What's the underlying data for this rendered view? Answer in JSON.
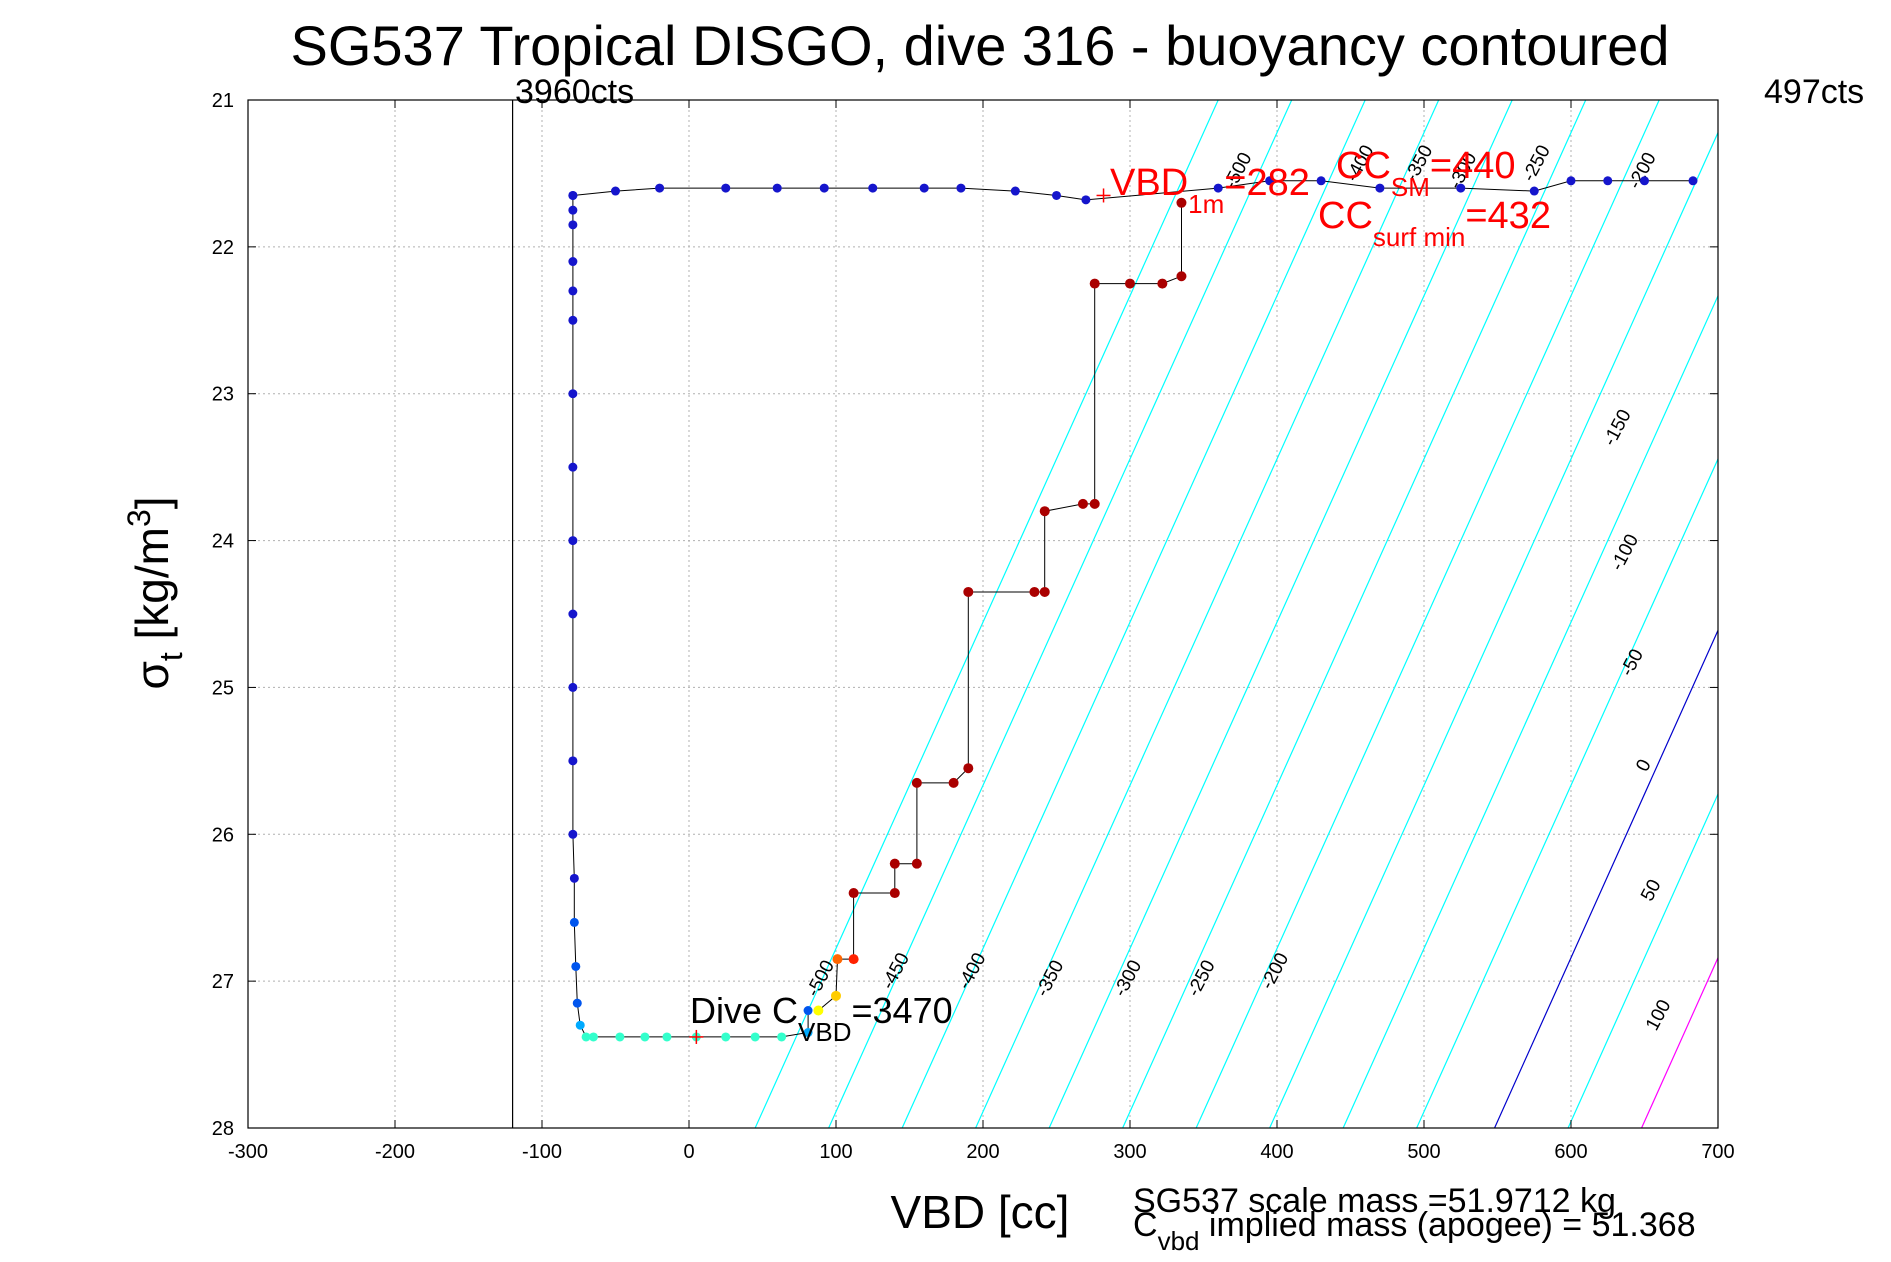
{
  "chart_data": {
    "type": "scatter",
    "title": "SG537 Tropical DISGO, dive 316 - buoyancy contoured",
    "xlabel": "VBD [cc]",
    "ylabel_main": "σ",
    "ylabel_sub": "t",
    "ylabel_units": " [kg/m",
    "ylabel_sup": "3",
    "ylabel_close": "]",
    "xlim": [
      -300,
      700
    ],
    "ylim": [
      28,
      21
    ],
    "y_reversed": true,
    "grid": true,
    "x_ticks": [
      "-300",
      "-200",
      "-100",
      "0",
      "100",
      "200",
      "300",
      "400",
      "500",
      "600",
      "700"
    ],
    "y_ticks": [
      "21",
      "22",
      "23",
      "24",
      "25",
      "26",
      "27",
      "28"
    ],
    "annotations": {
      "left_counts": "3960cts",
      "right_counts": "497cts",
      "vbd_1m_main": "VBD",
      "vbd_1m_sub": "1m",
      "vbd_1m_value": "=282",
      "cc_sm_main": "CC",
      "cc_sm_sub": "SM",
      "cc_sm_value": "=440",
      "cc_surf_main": "CC",
      "cc_surf_sub": "surf min",
      "cc_surf_value": "=432",
      "dive_c_main": "Dive C",
      "dive_c_sub": "VBD",
      "dive_c_value": "=3470",
      "scale_mass": "SG537 scale mass =51.9712 kg",
      "implied_main": "C",
      "implied_sub": "vbd",
      "implied_text": " implied mass (apogee) = 51.368"
    },
    "count_lines_x": [
      -120,
      700
    ],
    "contours": [
      {
        "label": "-500",
        "color": "#00ffff",
        "x_at_28": 45,
        "x_at_21": 360
      },
      {
        "label": "-450",
        "color": "#00ffff",
        "x_at_28": 95,
        "x_at_21": 410
      },
      {
        "label": "-400",
        "color": "#00ffff",
        "x_at_28": 145,
        "x_at_21": 460
      },
      {
        "label": "-350",
        "color": "#00ffff",
        "x_at_28": 195,
        "x_at_21": 510
      },
      {
        "label": "-300",
        "color": "#00ffff",
        "x_at_28": 245,
        "x_at_21": 560
      },
      {
        "label": "-250",
        "color": "#00ffff",
        "x_at_28": 295,
        "x_at_21": 610
      },
      {
        "label": "-200",
        "color": "#00ffff",
        "x_at_28": 345,
        "x_at_21": 660
      },
      {
        "label": "-150",
        "color": "#00ffff",
        "x_at_28": 395,
        "x_at_21": 710
      },
      {
        "label": "-100",
        "color": "#00ffff",
        "x_at_28": 445,
        "x_at_21": 760
      },
      {
        "label": "-50",
        "color": "#00ffff",
        "x_at_28": 495,
        "x_at_21": 810
      },
      {
        "label": "0",
        "color": "#0000cc",
        "x_at_28": 548,
        "x_at_21": 862
      },
      {
        "label": "50",
        "color": "#00ffff",
        "x_at_28": 598,
        "x_at_21": 912
      },
      {
        "label": "100",
        "color": "#ff00ff",
        "x_at_28": 648,
        "x_at_21": 962
      }
    ],
    "contour_label_points": [
      {
        "label": "-500",
        "x": 93,
        "y": 27.0
      },
      {
        "label": "-450",
        "x": 144,
        "y": 26.95
      },
      {
        "label": "-400",
        "x": 196,
        "y": 26.95
      },
      {
        "label": "-350",
        "x": 249,
        "y": 27.0
      },
      {
        "label": "-300",
        "x": 302,
        "y": 27.0
      },
      {
        "label": "-250",
        "x": 352,
        "y": 27.0
      },
      {
        "label": "-200",
        "x": 402,
        "y": 26.95
      },
      {
        "label": "-500",
        "x": 377,
        "y": 21.5
      },
      {
        "label": "-400",
        "x": 460,
        "y": 21.45
      },
      {
        "label": "-350",
        "x": 500,
        "y": 21.45
      },
      {
        "label": "-300",
        "x": 530,
        "y": 21.5
      },
      {
        "label": "-250",
        "x": 580,
        "y": 21.45
      },
      {
        "label": "-200",
        "x": 652,
        "y": 21.5
      },
      {
        "label": "-150",
        "x": 635,
        "y": 23.25
      },
      {
        "label": "-100",
        "x": 640,
        "y": 24.1
      },
      {
        "label": "-50",
        "x": 645,
        "y": 24.85
      },
      {
        "label": "0",
        "x": 653,
        "y": 25.55
      },
      {
        "label": "50",
        "x": 658,
        "y": 26.4
      },
      {
        "label": "100",
        "x": 663,
        "y": 27.25
      }
    ],
    "dive_series": [
      {
        "x": 81,
        "y": 27.2
      },
      {
        "x": 81,
        "y": 27.35
      },
      {
        "x": 63,
        "y": 27.38
      },
      {
        "x": 45,
        "y": 27.38
      },
      {
        "x": 25,
        "y": 27.38
      },
      {
        "x": 5,
        "y": 27.38
      },
      {
        "x": -15,
        "y": 27.38
      },
      {
        "x": -30,
        "y": 27.38
      },
      {
        "x": -47,
        "y": 27.38
      },
      {
        "x": -65,
        "y": 27.38
      },
      {
        "x": -70,
        "y": 27.38
      },
      {
        "x": -74,
        "y": 27.3
      },
      {
        "x": -76,
        "y": 27.15
      },
      {
        "x": -77,
        "y": 26.9
      },
      {
        "x": -78,
        "y": 26.6
      },
      {
        "x": -78,
        "y": 26.3
      },
      {
        "x": -79,
        "y": 26.0
      },
      {
        "x": -79,
        "y": 25.5
      },
      {
        "x": -79,
        "y": 25.0
      },
      {
        "x": -79,
        "y": 24.5
      },
      {
        "x": -79,
        "y": 24.0
      },
      {
        "x": -79,
        "y": 23.5
      },
      {
        "x": -79,
        "y": 23.0
      },
      {
        "x": -79,
        "y": 22.5
      },
      {
        "x": -79,
        "y": 22.3
      },
      {
        "x": -79,
        "y": 22.1
      },
      {
        "x": -79,
        "y": 21.85
      },
      {
        "x": -79,
        "y": 21.75
      },
      {
        "x": -79,
        "y": 21.65
      }
    ],
    "climb_series": [
      {
        "x": 88,
        "y": 27.2
      },
      {
        "x": 100,
        "y": 27.1
      },
      {
        "x": 101,
        "y": 26.85
      },
      {
        "x": 112,
        "y": 26.85
      },
      {
        "x": 112,
        "y": 26.4
      },
      {
        "x": 140,
        "y": 26.4
      },
      {
        "x": 140,
        "y": 26.2
      },
      {
        "x": 155,
        "y": 26.2
      },
      {
        "x": 155,
        "y": 25.65
      },
      {
        "x": 180,
        "y": 25.65
      },
      {
        "x": 190,
        "y": 25.55
      },
      {
        "x": 190,
        "y": 24.35
      },
      {
        "x": 235,
        "y": 24.35
      },
      {
        "x": 242,
        "y": 24.35
      },
      {
        "x": 242,
        "y": 23.8
      },
      {
        "x": 268,
        "y": 23.75
      },
      {
        "x": 276,
        "y": 23.75
      },
      {
        "x": 276,
        "y": 22.25
      },
      {
        "x": 300,
        "y": 22.25
      },
      {
        "x": 322,
        "y": 22.25
      },
      {
        "x": 335,
        "y": 22.2
      },
      {
        "x": 335,
        "y": 21.7
      }
    ],
    "surface_series": [
      {
        "x": -79,
        "y": 21.65
      },
      {
        "x": -50,
        "y": 21.62
      },
      {
        "x": -20,
        "y": 21.6
      },
      {
        "x": 25,
        "y": 21.6
      },
      {
        "x": 60,
        "y": 21.6
      },
      {
        "x": 92,
        "y": 21.6
      },
      {
        "x": 125,
        "y": 21.6
      },
      {
        "x": 160,
        "y": 21.6
      },
      {
        "x": 185,
        "y": 21.6
      },
      {
        "x": 222,
        "y": 21.62
      },
      {
        "x": 250,
        "y": 21.65
      },
      {
        "x": 270,
        "y": 21.68
      },
      {
        "x": 360,
        "y": 21.6
      },
      {
        "x": 395,
        "y": 21.55
      },
      {
        "x": 430,
        "y": 21.55
      },
      {
        "x": 470,
        "y": 21.6
      },
      {
        "x": 525,
        "y": 21.6
      },
      {
        "x": 575,
        "y": 21.62
      },
      {
        "x": 600,
        "y": 21.55
      },
      {
        "x": 625,
        "y": 21.55
      },
      {
        "x": 650,
        "y": 21.55
      },
      {
        "x": 683,
        "y": 21.55
      }
    ],
    "markers": [
      {
        "x": 282,
        "y": 21.65,
        "color": "#ff0000"
      },
      {
        "x": 5,
        "y": 27.38,
        "color": "#ff0000"
      }
    ]
  }
}
